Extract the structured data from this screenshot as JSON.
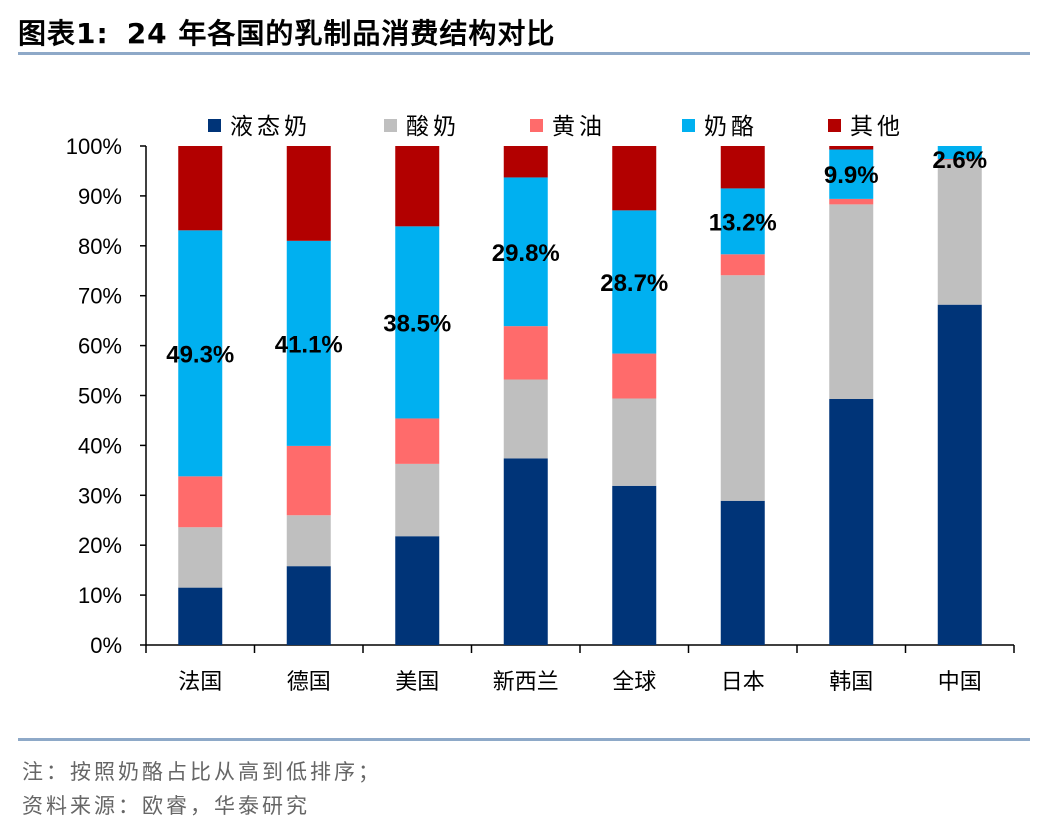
{
  "header": {
    "label": "图表1:",
    "title": "24 年各国的乳制品消费结构对比"
  },
  "footer": {
    "note": "注：按照奶酪占比从高到低排序；",
    "source": "资料来源：欧睿，华泰研究"
  },
  "chart_data": {
    "type": "bar",
    "stacked": true,
    "percent": true,
    "categories": [
      "法国",
      "德国",
      "美国",
      "新西兰",
      "全球",
      "日本",
      "韩国",
      "中国"
    ],
    "series": [
      {
        "name": "液态奶",
        "color": "#003478",
        "values": [
          11.5,
          15.8,
          21.8,
          37.4,
          31.9,
          28.9,
          49.3,
          68.2
        ]
      },
      {
        "name": "酸奶",
        "color": "#bfbfbf",
        "values": [
          12.1,
          10.2,
          14.5,
          15.8,
          17.5,
          45.2,
          39.0,
          29.0
        ]
      },
      {
        "name": "黄油",
        "color": "#ff6b6b",
        "values": [
          10.2,
          13.9,
          9.1,
          10.7,
          9.0,
          4.2,
          1.1,
          0.2
        ]
      },
      {
        "name": "奶酪",
        "color": "#00b0f0",
        "values": [
          49.3,
          41.1,
          38.5,
          29.8,
          28.7,
          13.2,
          9.9,
          2.6
        ]
      },
      {
        "name": "其他",
        "color": "#b20000",
        "values": [
          16.9,
          19.0,
          16.1,
          6.3,
          12.9,
          8.5,
          0.7,
          0.0
        ]
      }
    ],
    "data_labels": [
      "49.3%",
      "41.1%",
      "38.5%",
      "29.8%",
      "28.7%",
      "13.2%",
      "9.9%",
      "2.6%"
    ],
    "data_label_series": "奶酪",
    "ylim": [
      0,
      100
    ],
    "yticks": [
      "0%",
      "10%",
      "20%",
      "30%",
      "40%",
      "50%",
      "60%",
      "70%",
      "80%",
      "90%",
      "100%"
    ],
    "grid": false,
    "legend": "top"
  }
}
